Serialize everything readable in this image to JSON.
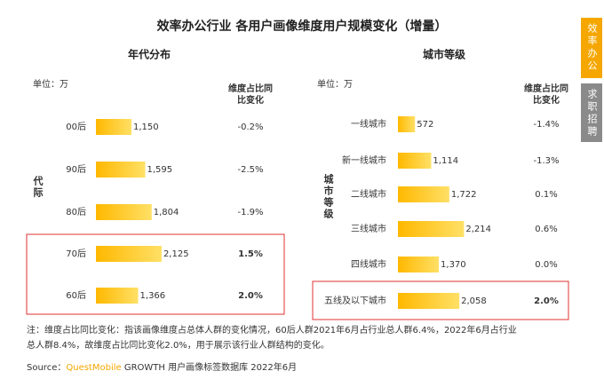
{
  "title": "效率办公行业 各用户画像维度用户规模变化（增量）",
  "tabs": [
    "效率办公",
    "求职招聘"
  ],
  "note": [
    "注：维度占比同比变化：指该画像维度占总体人群的变化情况，60后人群2021年6月占行业总人群6.4%，2022年6月占行业",
    "总人群8.4%，故维度占比同比变化2.0%，用于展示该行业人群结构的变化。"
  ],
  "source": {
    "prefix": "Source：",
    "brand": "QuestMobile",
    "rest": " GROWTH 用户画像标签数据库 2022年6月"
  },
  "chart_data": [
    {
      "type": "bar",
      "orientation": "horizontal",
      "title": "年代分布",
      "unit": "单位：万",
      "axis_label": "代际",
      "change_header": [
        "维度占比同",
        "比变化"
      ],
      "categories": [
        "00后",
        "90后",
        "80后",
        "70后",
        "60后"
      ],
      "values": [
        1150,
        1595,
        1804,
        2125,
        1366
      ],
      "value_labels": [
        "1,150",
        "1,595",
        "1,804",
        "2,125",
        "1,366"
      ],
      "change_labels": [
        "-0.2%",
        "-2.5%",
        "-1.9%",
        "1.5%",
        "2.0%"
      ],
      "highlight": [
        false,
        false,
        false,
        true,
        true
      ],
      "xlim": [
        0,
        2500
      ],
      "color": "#f5c400"
    },
    {
      "type": "bar",
      "orientation": "horizontal",
      "title": "城市等级",
      "unit": "单位：万",
      "axis_label": "城市等级",
      "change_header": [
        "维度占比同",
        "比变化"
      ],
      "categories": [
        "一线城市",
        "新一线城市",
        "二线城市",
        "三线城市",
        "四线城市",
        "五线及以下城市"
      ],
      "values": [
        572,
        1114,
        1722,
        2214,
        1370,
        2058
      ],
      "value_labels": [
        "572",
        "1,114",
        "1,722",
        "2,214",
        "1,370",
        "2,058"
      ],
      "change_labels": [
        "-1.4%",
        "-1.3%",
        "0.1%",
        "0.6%",
        "0.0%",
        "2.0%"
      ],
      "highlight": [
        false,
        false,
        false,
        false,
        false,
        true
      ],
      "xlim": [
        0,
        2500
      ],
      "color": "#f5c400"
    }
  ]
}
